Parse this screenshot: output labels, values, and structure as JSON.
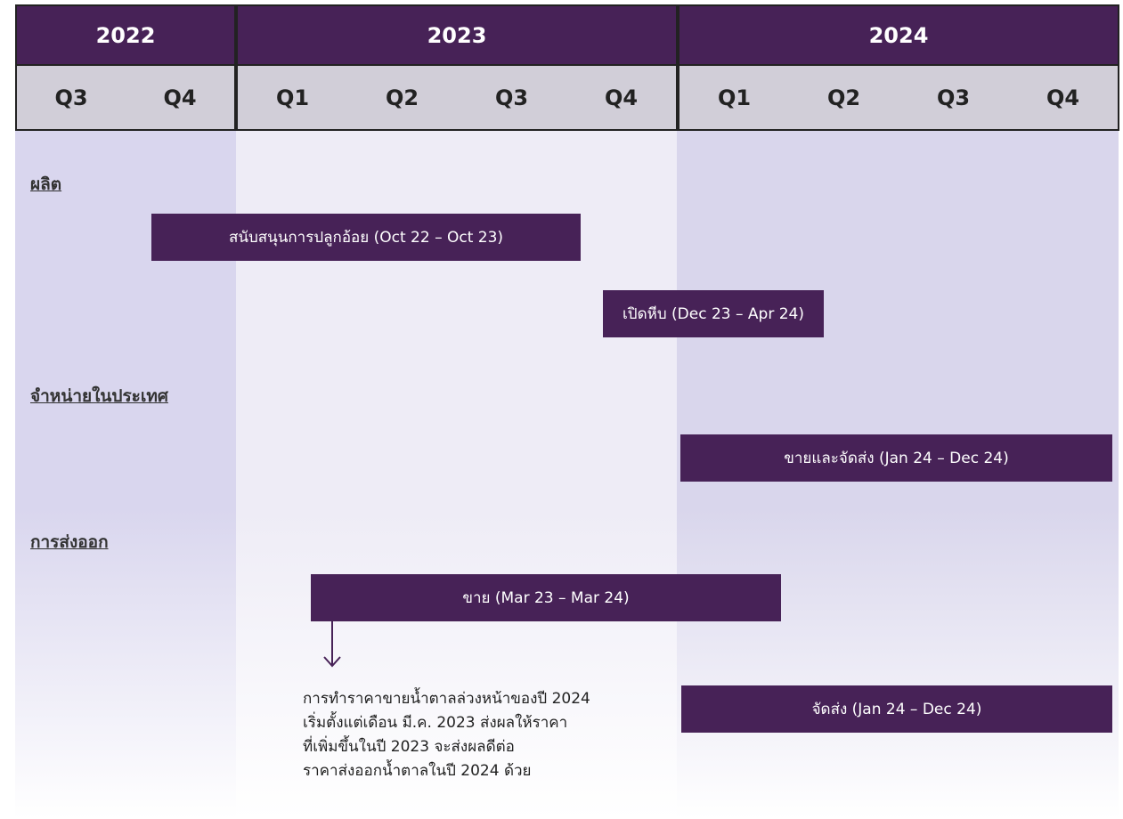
{
  "header": {
    "years": [
      {
        "label": "2022",
        "quarters": [
          "Q3",
          "Q4"
        ]
      },
      {
        "label": "2023",
        "quarters": [
          "Q1",
          "Q2",
          "Q3",
          "Q4"
        ]
      },
      {
        "label": "2024",
        "quarters": [
          "Q1",
          "Q2",
          "Q3",
          "Q4"
        ]
      }
    ]
  },
  "sections": [
    {
      "label": "ผลิต",
      "bars": [
        "สนับสนุนการปลูกอ้อย (Oct 22 – Oct 23)",
        "เปิดหีบ (Dec 23 – Apr 24)"
      ]
    },
    {
      "label": "จำหน่ายในประเทศ",
      "bars": [
        "ขายและจัดส่ง (Jan 24 – Dec 24)"
      ]
    },
    {
      "label": "การส่งออก",
      "bars": [
        "ขาย (Mar 23 – Mar 24)",
        "จัดส่ง (Jan 24 – Dec 24)"
      ]
    }
  ],
  "note": [
    "การทำราคาขายน้ำตาลล่วงหน้าของปี 2024",
    "เริ่มตั้งแต่เดือน มี.ค. 2023 ส่งผลให้ราคา",
    "ที่เพิ่มขึ้นในปี 2023 จะส่งผลดีต่อ",
    "ราคาส่งออกน้ำตาลในปี 2024 ด้วย"
  ]
}
